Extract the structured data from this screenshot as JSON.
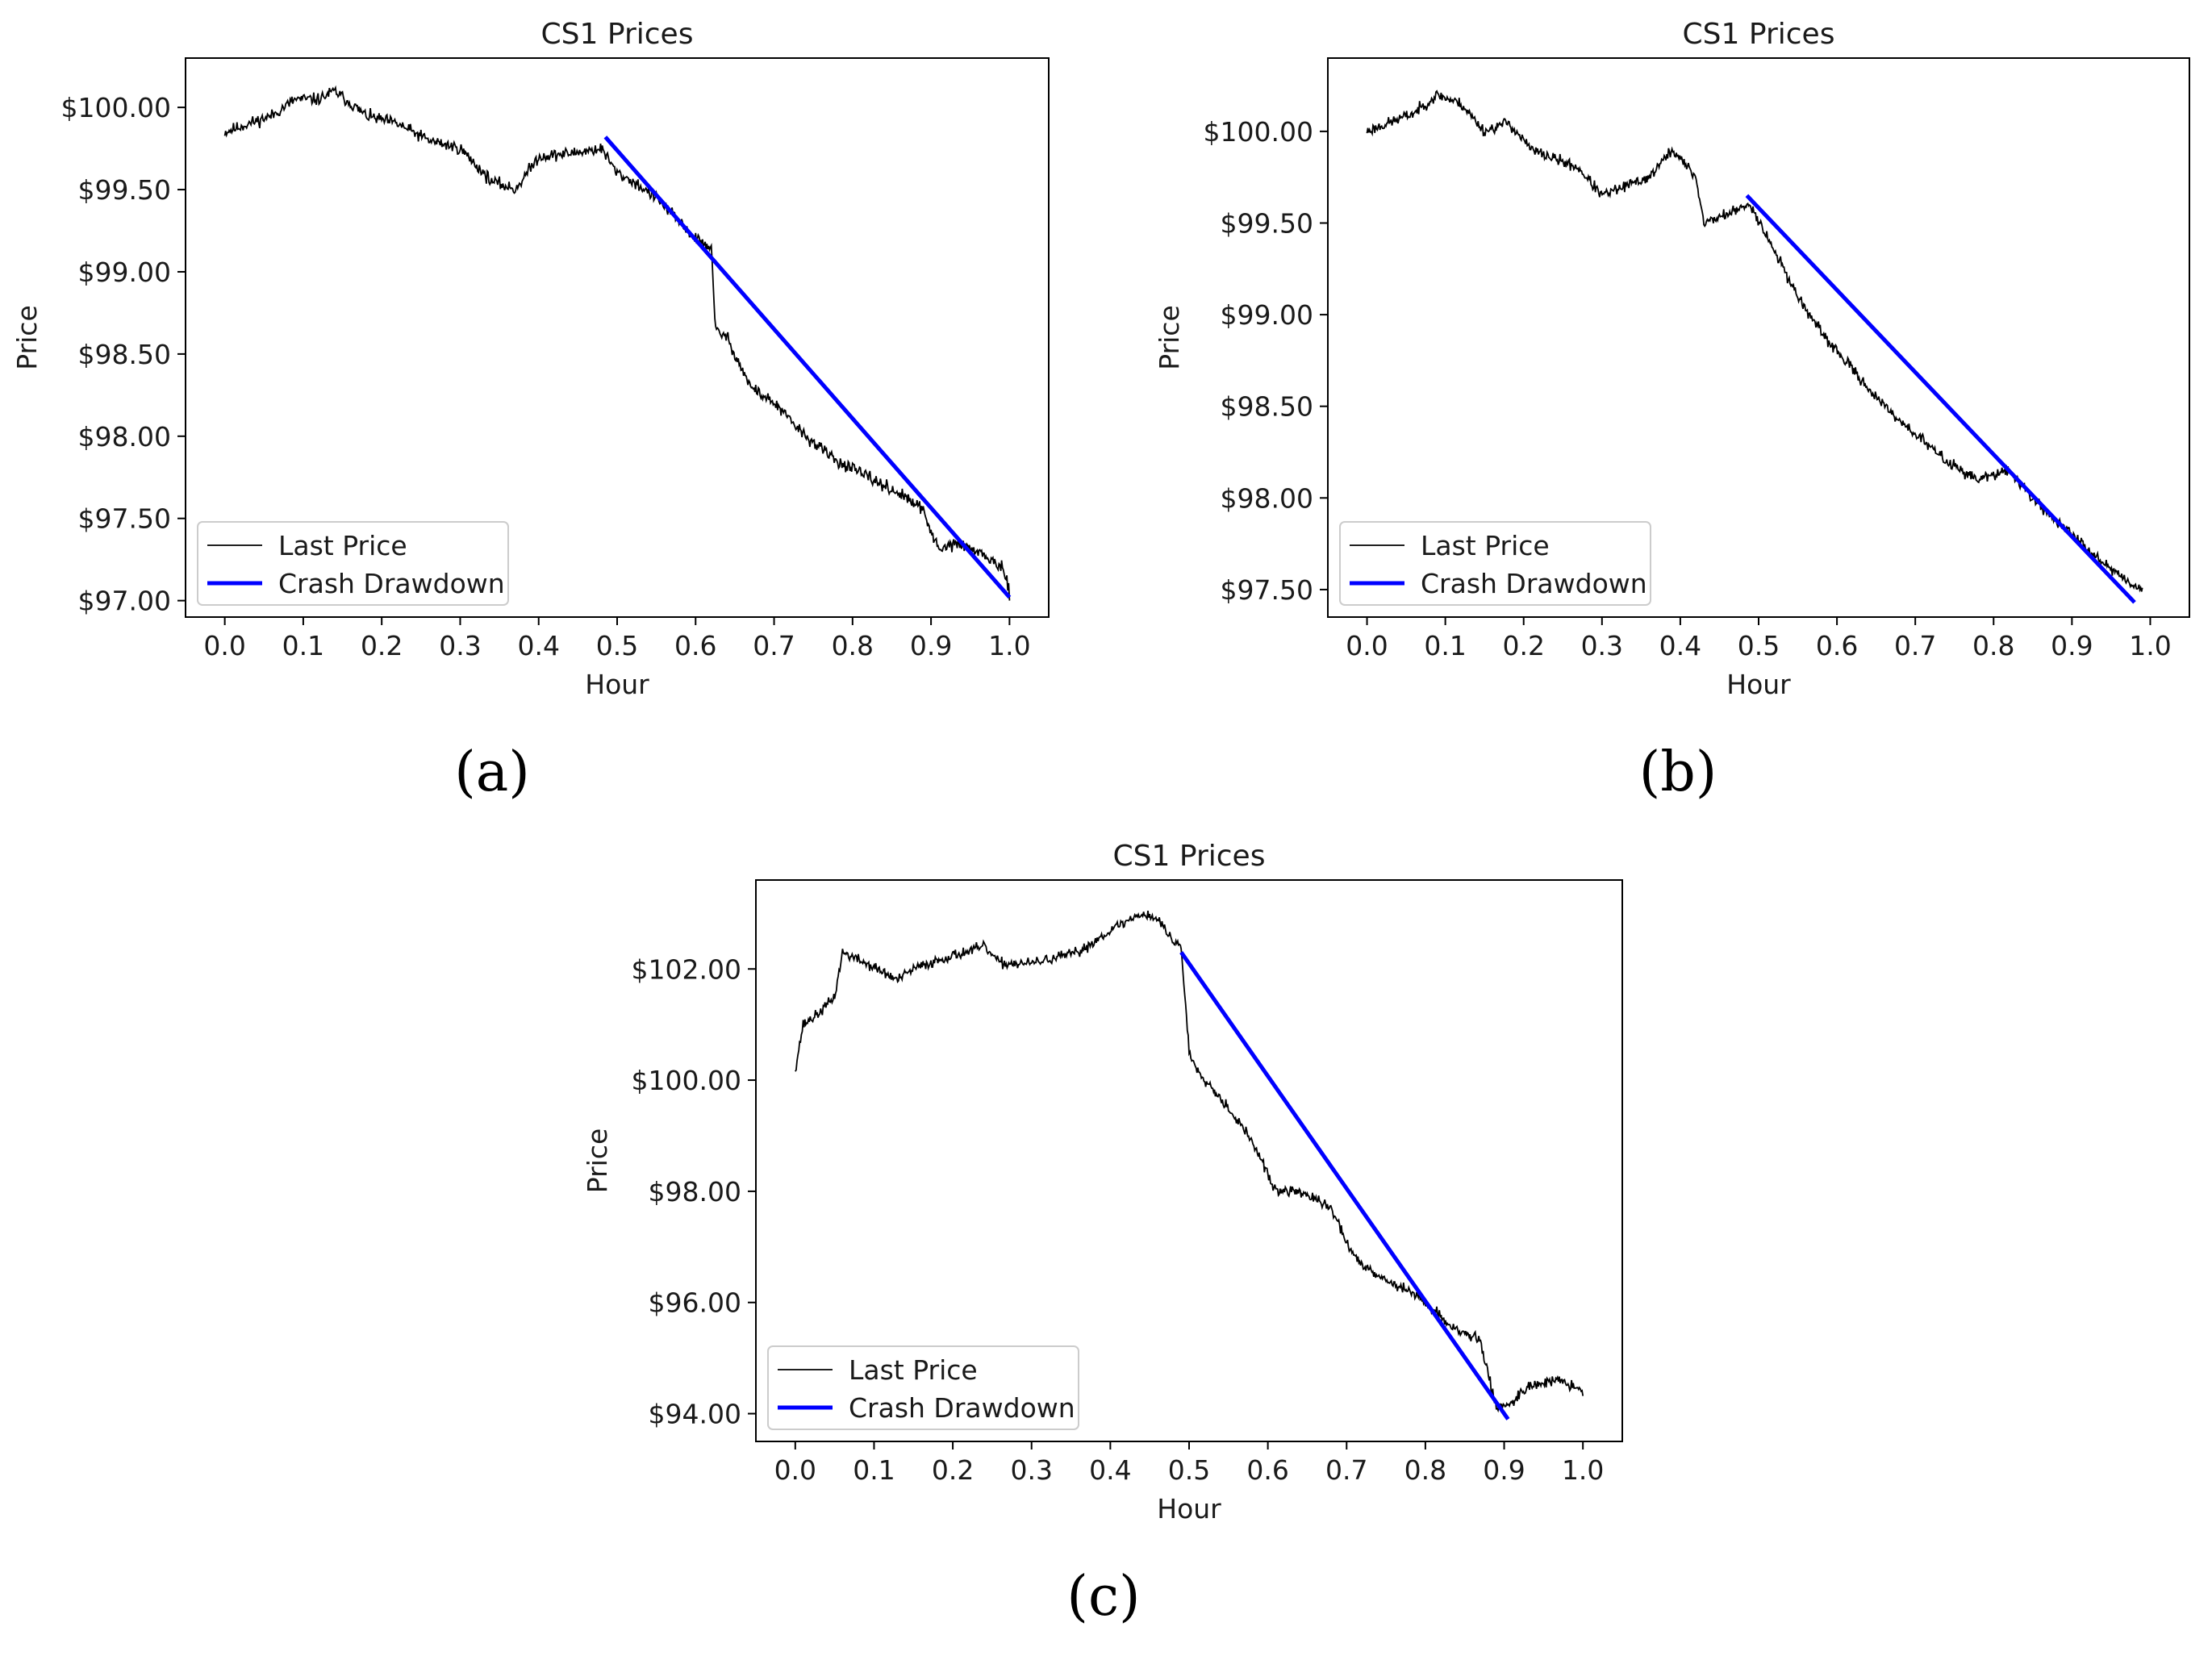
{
  "figure": {
    "panel_labels": [
      "(a)",
      "(b)",
      "(c)"
    ]
  },
  "chart_data": [
    {
      "type": "line",
      "panel": "(a)",
      "title": "CS1 Prices",
      "xlabel": "Hour",
      "ylabel": "Price",
      "xlim": [
        -0.05,
        1.05
      ],
      "ylim": [
        96.9,
        100.3
      ],
      "xticks": [
        0.0,
        0.1,
        0.2,
        0.3,
        0.4,
        0.5,
        0.6,
        0.7,
        0.8,
        0.9,
        1.0
      ],
      "xtick_labels": [
        "0.0",
        "0.1",
        "0.2",
        "0.3",
        "0.4",
        "0.5",
        "0.6",
        "0.7",
        "0.8",
        "0.9",
        "1.0"
      ],
      "yticks": [
        97.0,
        97.5,
        98.0,
        98.5,
        99.0,
        99.5,
        100.0
      ],
      "ytick_labels": [
        "$97.00",
        "$97.50",
        "$98.00",
        "$98.50",
        "$99.00",
        "$99.50",
        "$100.00"
      ],
      "legend": {
        "position": "lower-left",
        "entries": [
          "Last Price",
          "Crash Drawdown"
        ]
      },
      "series": [
        {
          "name": "Last Price",
          "color": "#000000",
          "x": [
            0.0,
            0.03,
            0.06,
            0.09,
            0.12,
            0.14,
            0.18,
            0.22,
            0.26,
            0.3,
            0.34,
            0.37,
            0.4,
            0.44,
            0.48,
            0.5,
            0.52,
            0.55,
            0.58,
            0.6,
            0.62,
            0.625,
            0.64,
            0.67,
            0.7,
            0.74,
            0.78,
            0.82,
            0.86,
            0.89,
            0.91,
            0.93,
            0.96,
            0.99,
            1.0
          ],
          "y": [
            99.85,
            99.9,
            99.95,
            100.05,
            100.05,
            100.1,
            99.95,
            99.9,
            99.8,
            99.75,
            99.55,
            99.5,
            99.7,
            99.72,
            99.75,
            99.6,
            99.55,
            99.45,
            99.3,
            99.2,
            99.15,
            98.65,
            98.6,
            98.3,
            98.2,
            98.0,
            97.85,
            97.75,
            97.65,
            97.55,
            97.3,
            97.35,
            97.3,
            97.2,
            97.05
          ]
        },
        {
          "name": "Crash Drawdown",
          "color": "#0000ff",
          "x": [
            0.485,
            1.0
          ],
          "y": [
            99.82,
            97.02
          ]
        }
      ]
    },
    {
      "type": "line",
      "panel": "(b)",
      "title": "CS1 Prices",
      "xlabel": "Hour",
      "ylabel": "Price",
      "xlim": [
        -0.05,
        1.05
      ],
      "ylim": [
        97.35,
        100.4
      ],
      "xticks": [
        0.0,
        0.1,
        0.2,
        0.3,
        0.4,
        0.5,
        0.6,
        0.7,
        0.8,
        0.9,
        1.0
      ],
      "xtick_labels": [
        "0.0",
        "0.1",
        "0.2",
        "0.3",
        "0.4",
        "0.5",
        "0.6",
        "0.7",
        "0.8",
        "0.9",
        "1.0"
      ],
      "yticks": [
        97.5,
        98.0,
        98.5,
        99.0,
        99.5,
        100.0
      ],
      "ytick_labels": [
        "$97.50",
        "$98.00",
        "$98.50",
        "$99.00",
        "$99.50",
        "$100.00"
      ],
      "legend": {
        "position": "lower-left",
        "entries": [
          "Last Price",
          "Crash Drawdown"
        ]
      },
      "series": [
        {
          "name": "Last Price",
          "color": "#000000",
          "x": [
            0.0,
            0.03,
            0.06,
            0.09,
            0.12,
            0.15,
            0.18,
            0.21,
            0.24,
            0.27,
            0.3,
            0.33,
            0.36,
            0.39,
            0.42,
            0.43,
            0.46,
            0.49,
            0.52,
            0.55,
            0.58,
            0.62,
            0.66,
            0.7,
            0.74,
            0.78,
            0.82,
            0.86,
            0.9,
            0.94,
            0.97,
            0.99
          ],
          "y": [
            100.0,
            100.05,
            100.1,
            100.2,
            100.15,
            100.0,
            100.05,
            99.9,
            99.85,
            99.8,
            99.65,
            99.7,
            99.75,
            99.9,
            99.75,
            99.5,
            99.55,
            99.6,
            99.35,
            99.1,
            98.9,
            98.7,
            98.5,
            98.35,
            98.2,
            98.1,
            98.15,
            97.95,
            97.8,
            97.65,
            97.55,
            97.5
          ]
        },
        {
          "name": "Crash Drawdown",
          "color": "#0000ff",
          "x": [
            0.485,
            0.98
          ],
          "y": [
            99.65,
            97.43
          ]
        }
      ]
    },
    {
      "type": "line",
      "panel": "(c)",
      "title": "CS1 Prices",
      "xlabel": "Hour",
      "ylabel": "Price",
      "xlim": [
        -0.05,
        1.05
      ],
      "ylim": [
        93.5,
        103.6
      ],
      "xticks": [
        0.0,
        0.1,
        0.2,
        0.3,
        0.4,
        0.5,
        0.6,
        0.7,
        0.8,
        0.9,
        1.0
      ],
      "xtick_labels": [
        "0.0",
        "0.1",
        "0.2",
        "0.3",
        "0.4",
        "0.5",
        "0.6",
        "0.7",
        "0.8",
        "0.9",
        "1.0"
      ],
      "yticks": [
        94.0,
        96.0,
        98.0,
        100.0,
        102.0
      ],
      "ytick_labels": [
        "$94.00",
        "$96.00",
        "$98.00",
        "$100.00",
        "$102.00"
      ],
      "legend": {
        "position": "lower-left",
        "entries": [
          "Last Price",
          "Crash Drawdown"
        ]
      },
      "series": [
        {
          "name": "Last Price",
          "color": "#000000",
          "x": [
            0.0,
            0.01,
            0.03,
            0.05,
            0.06,
            0.09,
            0.13,
            0.15,
            0.19,
            0.24,
            0.26,
            0.3,
            0.36,
            0.4,
            0.44,
            0.46,
            0.48,
            0.49,
            0.5,
            0.51,
            0.55,
            0.58,
            0.61,
            0.64,
            0.68,
            0.71,
            0.75,
            0.78,
            0.8,
            0.83,
            0.87,
            0.89,
            0.91,
            0.93,
            0.97,
            1.0
          ],
          "y": [
            100.2,
            101.0,
            101.2,
            101.5,
            102.3,
            102.1,
            101.8,
            102.0,
            102.2,
            102.4,
            102.1,
            102.1,
            102.3,
            102.7,
            103.0,
            102.9,
            102.5,
            102.4,
            100.5,
            100.2,
            99.5,
            98.9,
            98.0,
            98.0,
            97.7,
            96.8,
            96.4,
            96.2,
            96.0,
            95.6,
            95.3,
            94.1,
            94.2,
            94.5,
            94.6,
            94.4
          ]
        },
        {
          "name": "Crash Drawdown",
          "color": "#0000ff",
          "x": [
            0.49,
            0.905
          ],
          "y": [
            102.3,
            93.9
          ]
        }
      ]
    }
  ]
}
